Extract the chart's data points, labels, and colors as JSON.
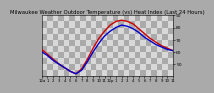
{
  "title": "Milwaukee Weather Outdoor Temperature (vs) Heat Index (Last 24 Hours)",
  "x_values": [
    0,
    1,
    2,
    3,
    4,
    5,
    6,
    7,
    8,
    9,
    10,
    11,
    12,
    13,
    14,
    15,
    16,
    17,
    18,
    19,
    20,
    21,
    22,
    23
  ],
  "temp_values": [
    62,
    58,
    54,
    50,
    47,
    44,
    42,
    46,
    54,
    63,
    71,
    77,
    82,
    85,
    86,
    85,
    83,
    79,
    75,
    71,
    68,
    65,
    63,
    61
  ],
  "heat_index_values": [
    60,
    57,
    53,
    50,
    47,
    44,
    42,
    45,
    52,
    60,
    67,
    73,
    77,
    80,
    82,
    81,
    79,
    76,
    72,
    69,
    66,
    64,
    62,
    61
  ],
  "temp_color": "#cc0000",
  "heat_index_color": "#0000cc",
  "bg_dark": "#aaaaaa",
  "bg_light": "#d8d8d8",
  "title_fontsize": 3.8,
  "title_color": "#000000",
  "ylim": [
    40,
    90
  ],
  "ytick_vals": [
    50,
    60,
    70,
    80,
    90
  ],
  "ytick_labels": [
    "50",
    "60",
    "70",
    "80",
    "90"
  ],
  "xtick_labels": [
    "12a",
    "1",
    "2",
    "3",
    "4",
    "5",
    "6",
    "7",
    "8",
    "9",
    "10",
    "11",
    "12p",
    "1",
    "2",
    "3",
    "4",
    "5",
    "6",
    "7",
    "8",
    "9",
    "10",
    "11"
  ],
  "line_width": 1.0
}
